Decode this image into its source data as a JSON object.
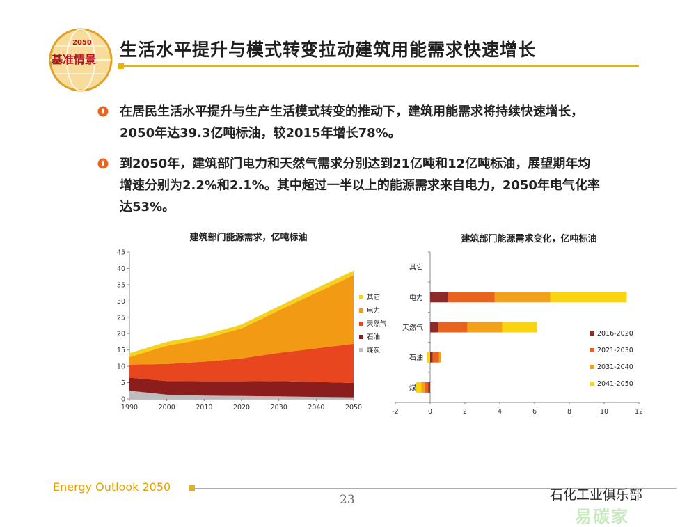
{
  "logo": {
    "text": "基准情景",
    "small_text": "2050"
  },
  "title": "生活水平提升与模式转变拉动建筑用能需求快速增长",
  "bullets": [
    {
      "lines": [
        "在居民生活水平提升与生产生活模式转变的推动下，建筑用能需求将持续快速增长，",
        "2050年达39.3亿吨标油，较2015年增长78%。"
      ]
    },
    {
      "lines": [
        "到2050年，建筑部门电力和天然气需求分别达到21亿吨和12亿吨标油，展望期年均",
        "增速分别为2.2%和2.1%。其中超过一半以上的能源需求来自电力，2050年电气化率",
        "达53%。"
      ]
    }
  ],
  "chart_data": [
    {
      "type": "area",
      "title": "建筑部门能源需求，亿吨标油",
      "stacked": true,
      "x": [
        1990,
        2000,
        2010,
        2020,
        2030,
        2040,
        2050
      ],
      "xticks": [
        "1990",
        "2000",
        "2010",
        "2020",
        "2030",
        "2040",
        "2050"
      ],
      "ylim": [
        0,
        45
      ],
      "yticks": [
        "0",
        "5",
        "10",
        "15",
        "20",
        "25",
        "30",
        "35",
        "40",
        "45"
      ],
      "legend_position": "right",
      "series": [
        {
          "name": "煤炭",
          "color": "#bdbdbd",
          "values": [
            2.5,
            1.3,
            1.0,
            0.9,
            0.8,
            0.6,
            0.5
          ]
        },
        {
          "name": "石油",
          "color": "#8c1d1d",
          "values": [
            4.0,
            4.2,
            4.4,
            4.5,
            4.7,
            4.6,
            4.4
          ]
        },
        {
          "name": "天然气",
          "color": "#e8461e",
          "values": [
            4.0,
            5.2,
            6.0,
            7.0,
            8.6,
            10.3,
            12.0
          ]
        },
        {
          "name": "电力",
          "color": "#f39a14",
          "values": [
            2.3,
            5.6,
            7.0,
            9.2,
            13.0,
            17.0,
            21.0
          ]
        },
        {
          "name": "其它",
          "color": "#f6d11e",
          "values": [
            1.2,
            1.2,
            1.2,
            1.2,
            1.3,
            1.4,
            1.4
          ]
        }
      ]
    },
    {
      "type": "bar",
      "orientation": "horizontal",
      "stacked": true,
      "title": "建筑部门能源需求变化，亿吨标油",
      "categories": [
        "其它",
        "电力",
        "天然气",
        "石油",
        "煤炭"
      ],
      "xlim": [
        -2,
        12
      ],
      "xticks": [
        "-2",
        "0",
        "2",
        "4",
        "6",
        "8",
        "10",
        "12"
      ],
      "legend_position": "right",
      "series": [
        {
          "name": "2016-2020",
          "color": "#8c2a2a",
          "values": [
            0.0,
            1.0,
            0.45,
            0.15,
            -0.1
          ]
        },
        {
          "name": "2021-2030",
          "color": "#e8641e",
          "values": [
            0.0,
            2.7,
            1.7,
            0.35,
            -0.2
          ]
        },
        {
          "name": "2031-2040",
          "color": "#f2a11a",
          "values": [
            0.0,
            3.2,
            2.0,
            0.1,
            -0.2
          ]
        },
        {
          "name": "2041-2050",
          "color": "#f9d40f",
          "values": [
            0.0,
            4.4,
            2.0,
            -0.2,
            -0.3
          ]
        }
      ]
    }
  ],
  "footer": {
    "left": "Energy Outlook 2050",
    "page": "23",
    "watermark": "石化工业俱乐部",
    "watermark2": "易碳家"
  },
  "colors": {
    "accent": "#e8b200",
    "footer_text": "#e6a100"
  }
}
